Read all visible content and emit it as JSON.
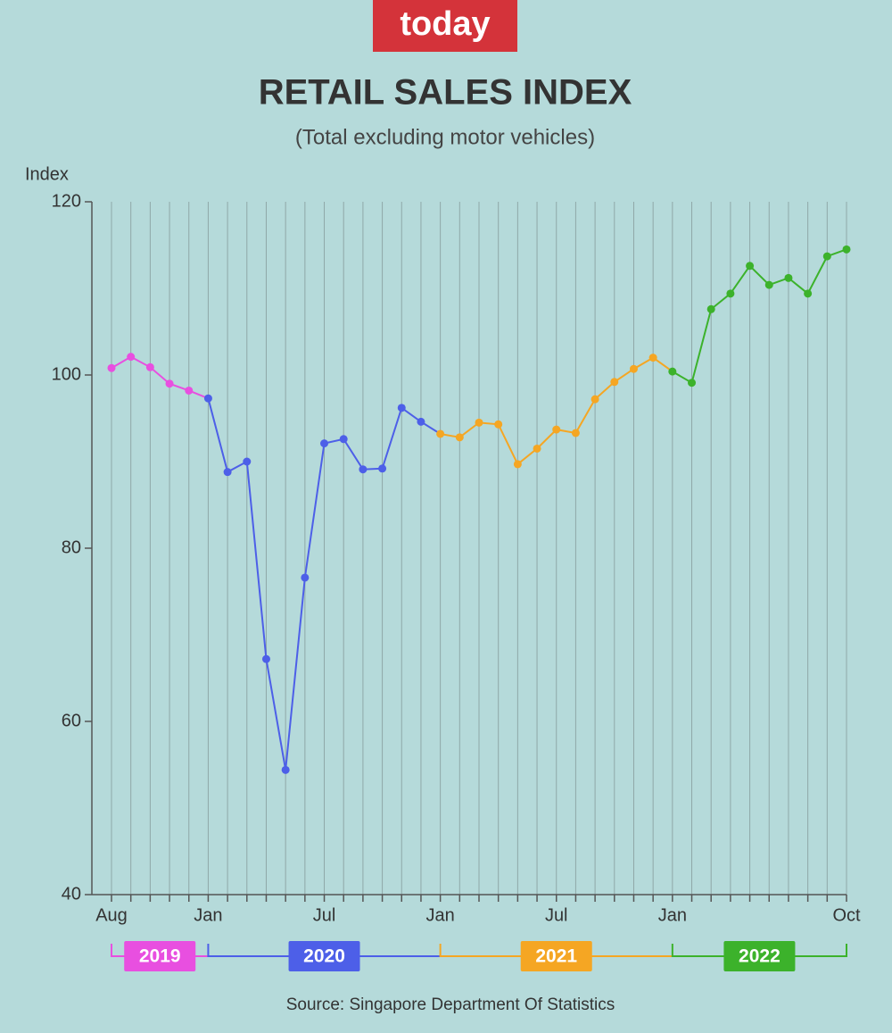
{
  "logo": "today",
  "chart_data": {
    "type": "line",
    "title": "RETAIL SALES INDEX",
    "subtitle": "(Total excluding motor vehicles)",
    "y_label": "Index",
    "source": "Source: Singapore Department Of Statistics",
    "categories": [
      "Aug",
      null,
      null,
      null,
      null,
      "Jan",
      null,
      null,
      null,
      null,
      null,
      "Jul",
      null,
      null,
      null,
      null,
      null,
      "Jan",
      null,
      null,
      null,
      null,
      null,
      "Jul",
      null,
      null,
      null,
      null,
      null,
      "Jan",
      null,
      null,
      null,
      null,
      null,
      null,
      null,
      null,
      "Oct"
    ],
    "series": [
      {
        "name": "2019",
        "color": "#e84fe0",
        "values": [
          100.8,
          102.1,
          100.9,
          99.0,
          98.2,
          null,
          null,
          null,
          null,
          null,
          null,
          null,
          null,
          null,
          null,
          null,
          null,
          null,
          null,
          null,
          null,
          null,
          null,
          null,
          null,
          null,
          null,
          null,
          null,
          null,
          null,
          null,
          null,
          null,
          null,
          null,
          null,
          null,
          null
        ]
      },
      {
        "name": "2020",
        "color": "#4d5fe8",
        "values": [
          null,
          null,
          null,
          null,
          null,
          97.3,
          88.8,
          90.0,
          67.2,
          54.4,
          76.6,
          92.1,
          92.6,
          89.1,
          89.2,
          96.2,
          94.6,
          null,
          null,
          null,
          null,
          null,
          null,
          null,
          null,
          null,
          null,
          null,
          null,
          null,
          null,
          null,
          null,
          null,
          null,
          null,
          null,
          null,
          null
        ]
      },
      {
        "name": "2021",
        "color": "#f5a623",
        "values": [
          null,
          null,
          null,
          null,
          null,
          null,
          null,
          null,
          null,
          null,
          null,
          null,
          null,
          null,
          null,
          null,
          null,
          93.2,
          92.8,
          94.5,
          94.3,
          89.7,
          91.5,
          93.7,
          93.3,
          97.2,
          99.2,
          100.7,
          102.0,
          null,
          null,
          null,
          null,
          null,
          null,
          null,
          null,
          null,
          null
        ]
      },
      {
        "name": "2022",
        "color": "#3cb22b",
        "values": [
          null,
          null,
          null,
          null,
          null,
          null,
          null,
          null,
          null,
          null,
          null,
          null,
          null,
          null,
          null,
          null,
          null,
          null,
          null,
          null,
          null,
          null,
          null,
          null,
          null,
          null,
          null,
          null,
          null,
          100.4,
          99.1,
          107.6,
          109.4,
          112.6,
          110.4,
          111.2,
          109.4,
          113.7,
          114.5
        ]
      }
    ],
    "ylim": [
      40,
      120
    ],
    "yticks": [
      40,
      60,
      80,
      100,
      120
    ],
    "grid": true
  }
}
